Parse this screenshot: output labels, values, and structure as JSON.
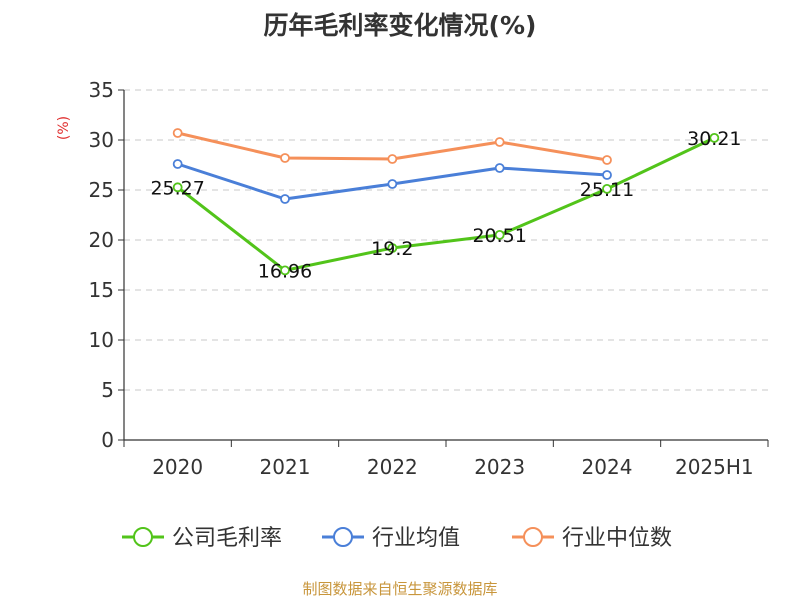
{
  "chart_data": {
    "type": "line",
    "title": "历年毛利率变化情况(%)",
    "ylabel": "(%)",
    "xlabel": "",
    "categories": [
      "2020",
      "2021",
      "2022",
      "2023",
      "2024",
      "2025H1"
    ],
    "ylim": [
      0,
      35
    ],
    "yticks": [
      0,
      5,
      10,
      15,
      20,
      25,
      30,
      35
    ],
    "grid": true,
    "legend_position": "bottom",
    "series": [
      {
        "name": "公司毛利率",
        "color": "#52c41a",
        "values": [
          25.27,
          16.96,
          19.2,
          20.51,
          25.11,
          30.21
        ],
        "show_labels": true
      },
      {
        "name": "行业均值",
        "color": "#4a7fd8",
        "values": [
          27.6,
          24.1,
          25.6,
          27.2,
          26.5,
          null
        ],
        "show_labels": false
      },
      {
        "name": "行业中位数",
        "color": "#f5905a",
        "values": [
          30.7,
          28.2,
          28.1,
          29.8,
          28.0,
          null
        ],
        "show_labels": false
      }
    ],
    "unit_color": "#e03030"
  },
  "source_note": "制图数据来自恒生聚源数据库"
}
